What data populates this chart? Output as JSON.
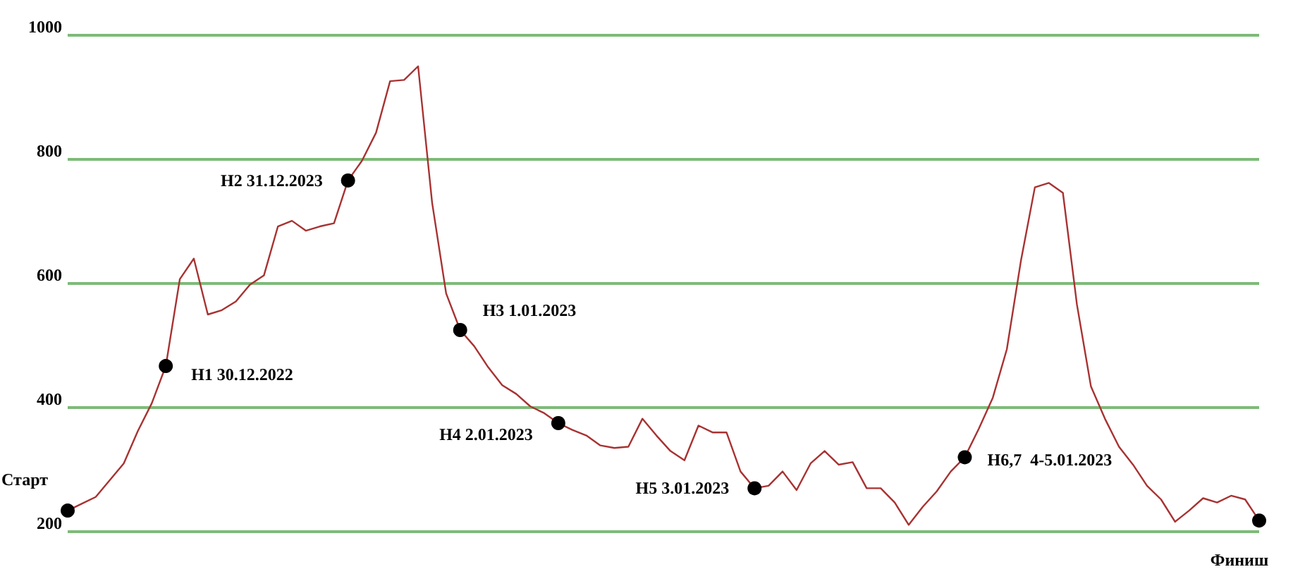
{
  "chart_data": {
    "type": "line",
    "categories": [
      null,
      null,
      null,
      null,
      null,
      null,
      null,
      null,
      null,
      null,
      null,
      null,
      null,
      null,
      null,
      null,
      null,
      null,
      null,
      null,
      null,
      null,
      null,
      null,
      null,
      null,
      null,
      null,
      null,
      null,
      null,
      null,
      null,
      null,
      null,
      null,
      null,
      null,
      null,
      null,
      null,
      null,
      null,
      null,
      null,
      null,
      null,
      null,
      null,
      null,
      null,
      null,
      null,
      null,
      null,
      null,
      null,
      null,
      null,
      null,
      null,
      null,
      null,
      null,
      null,
      null,
      null,
      null,
      null,
      null,
      null,
      null,
      null,
      null,
      null,
      null,
      null,
      null,
      null,
      null,
      null,
      null,
      null,
      null,
      null,
      null
    ],
    "ylim": [
      200,
      1000
    ],
    "yticks": [
      200,
      400,
      600,
      800,
      1000
    ],
    "grid": "y",
    "series": [
      {
        "color": "#a83232",
        "marker": "none",
        "values": [
          234,
          245,
          256,
          283,
          310,
          362,
          407,
          467,
          607,
          640,
          550,
          557,
          571,
          598,
          613,
          692,
          701,
          685,
          692,
          697,
          766,
          798,
          843,
          926,
          928,
          950,
          730,
          584,
          525,
          499,
          465,
          436,
          422,
          402,
          391,
          375,
          364,
          355,
          339,
          335,
          337,
          382,
          355,
          330,
          315,
          371,
          360,
          360,
          297,
          270,
          274,
          297,
          267,
          310,
          330,
          308,
          312,
          270,
          270,
          247,
          211,
          240,
          265,
          297,
          320,
          366,
          416,
          494,
          636,
          755,
          762,
          746,
          566,
          434,
          382,
          337,
          308,
          274,
          252,
          216,
          234,
          254,
          247,
          258,
          252,
          218
        ]
      },
      {
        "type": "scatter",
        "color": "#000000",
        "marker": "circle",
        "values": [
          234,
          null,
          null,
          null,
          null,
          null,
          null,
          467,
          null,
          null,
          null,
          null,
          null,
          null,
          null,
          null,
          null,
          null,
          null,
          null,
          766,
          null,
          null,
          null,
          null,
          null,
          null,
          null,
          525,
          null,
          null,
          null,
          null,
          null,
          null,
          375,
          null,
          null,
          null,
          null,
          null,
          null,
          null,
          null,
          null,
          null,
          null,
          null,
          null,
          270,
          null,
          null,
          null,
          null,
          null,
          null,
          null,
          null,
          null,
          null,
          null,
          null,
          null,
          null,
          320,
          null,
          null,
          null,
          null,
          null,
          null,
          null,
          null,
          null,
          null,
          null,
          null,
          null,
          null,
          null,
          null,
          null,
          null,
          null,
          null,
          218
        ],
        "value_labels": [
          "Старт",
          null,
          null,
          null,
          null,
          null,
          null,
          "Н1 30.12.2022",
          null,
          null,
          null,
          null,
          null,
          null,
          null,
          null,
          null,
          null,
          null,
          null,
          "Н2 31.12.2023",
          null,
          null,
          null,
          null,
          null,
          null,
          null,
          "Н3 1.01.2023",
          null,
          null,
          null,
          null,
          null,
          null,
          "Н4 2.01.2023",
          null,
          null,
          null,
          null,
          null,
          null,
          null,
          null,
          null,
          null,
          null,
          null,
          null,
          "Н5 3.01.2023",
          null,
          null,
          null,
          null,
          null,
          null,
          null,
          null,
          null,
          null,
          null,
          null,
          null,
          null,
          "Н6,7  4-5.01.2023",
          null,
          null,
          null,
          null,
          null,
          null,
          null,
          null,
          null,
          null,
          null,
          null,
          null,
          null,
          null,
          null,
          null,
          null,
          null,
          null,
          "Финиш"
        ]
      }
    ]
  }
}
